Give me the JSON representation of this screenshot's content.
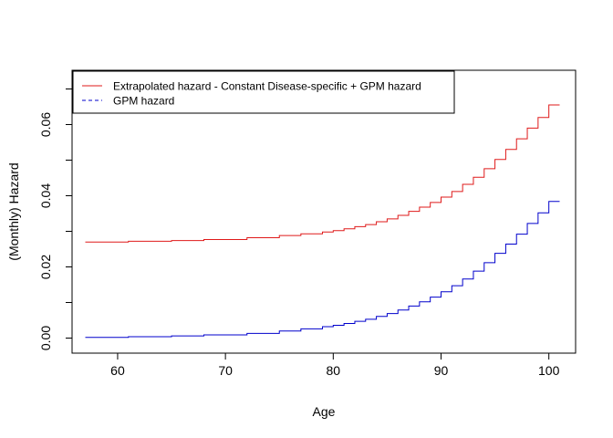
{
  "chart_data": {
    "type": "line",
    "step": true,
    "xlabel": "Age",
    "ylabel": "(Monthly) Hazard",
    "xlim": [
      57,
      101
    ],
    "ylim": [
      0,
      0.07
    ],
    "xticks": [
      60,
      70,
      80,
      90,
      100
    ],
    "yticks": [
      0.0,
      0.02,
      0.04,
      0.06
    ],
    "ytick_labels": [
      "0.00",
      "0.02",
      "0.04",
      "0.06"
    ],
    "grid": false,
    "legend_position": "top-left",
    "series": [
      {
        "name": "Extrapolated hazard - Constant Disease-specific + GPM hazard",
        "color": "#DF1A1A",
        "line_style": "solid",
        "x": [
          57,
          61,
          65,
          68,
          72,
          75,
          77,
          79,
          80,
          81,
          82,
          83,
          84,
          85,
          86,
          87,
          88,
          89,
          90,
          91,
          92,
          93,
          94,
          95,
          96,
          97,
          98,
          99,
          100,
          101
        ],
        "y": [
          0.027,
          0.0272,
          0.0274,
          0.0277,
          0.0282,
          0.0288,
          0.0293,
          0.0298,
          0.0302,
          0.0307,
          0.0313,
          0.0319,
          0.0327,
          0.0335,
          0.0345,
          0.0356,
          0.0368,
          0.0381,
          0.0396,
          0.0412,
          0.0432,
          0.0452,
          0.0476,
          0.0502,
          0.053,
          0.056,
          0.059,
          0.062,
          0.0655,
          0.0655
        ]
      },
      {
        "name": "GPM hazard",
        "color": "#0000CC",
        "line_style": "dashed",
        "x": [
          57,
          61,
          65,
          68,
          72,
          75,
          77,
          79,
          80,
          81,
          82,
          83,
          84,
          85,
          86,
          87,
          88,
          89,
          90,
          91,
          92,
          93,
          94,
          95,
          96,
          97,
          98,
          99,
          100,
          101
        ],
        "y": [
          0.0002,
          0.0004,
          0.0006,
          0.0009,
          0.0013,
          0.002,
          0.0026,
          0.0032,
          0.0036,
          0.0041,
          0.0047,
          0.0053,
          0.0061,
          0.0069,
          0.0079,
          0.009,
          0.0102,
          0.0115,
          0.013,
          0.0147,
          0.0166,
          0.0188,
          0.0212,
          0.0238,
          0.0264,
          0.0292,
          0.0322,
          0.0352,
          0.0384,
          0.0384
        ]
      }
    ]
  }
}
